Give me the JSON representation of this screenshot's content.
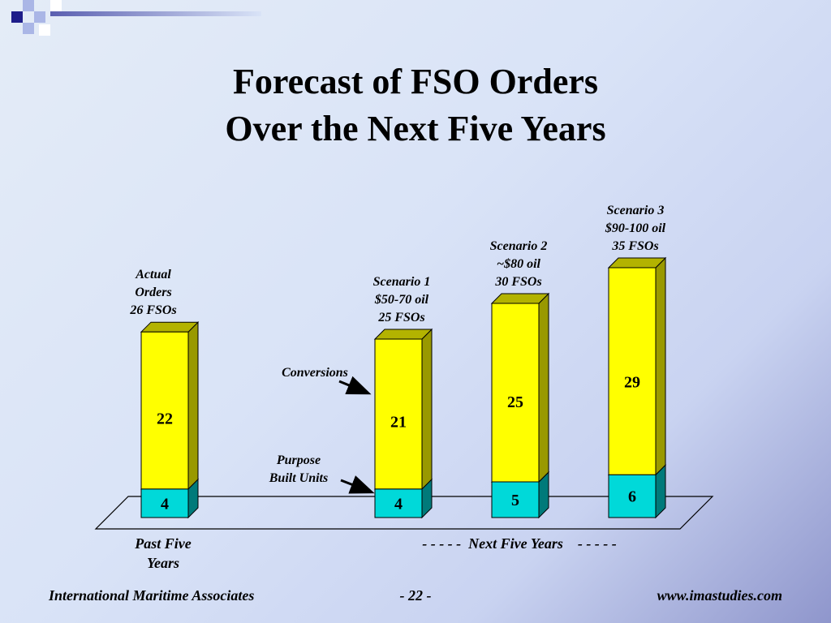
{
  "title": {
    "line1": "Forecast of FSO Orders",
    "line2": "Over the Next Five Years"
  },
  "chart_data": {
    "type": "bar",
    "stacked": true,
    "categories": [
      "Actual Orders",
      "Scenario 1",
      "Scenario 2",
      "Scenario 3"
    ],
    "series": [
      {
        "name": "Purpose Built Units",
        "values": [
          4,
          4,
          5,
          6
        ],
        "color": "#00d9d9"
      },
      {
        "name": "Conversions",
        "values": [
          22,
          21,
          25,
          29
        ],
        "color": "#ffff00"
      }
    ],
    "bar_labels": [
      [
        "Actual",
        "Orders",
        "26 FSOs"
      ],
      [
        "Scenario 1",
        "$50-70 oil",
        "25 FSOs"
      ],
      [
        "Scenario 2",
        "~$80 oil",
        "30 FSOs"
      ],
      [
        "Scenario 3",
        "$90-100 oil",
        "35 FSOs"
      ]
    ],
    "annotations": {
      "conversions": "Conversions",
      "purpose_built": [
        "Purpose",
        "Built Units"
      ]
    },
    "x_groups": {
      "past": [
        "Past Five",
        "Years"
      ],
      "next": "- - - - -  Next Five Years    - - - - -"
    }
  },
  "footer": {
    "left": "International Maritime Associates",
    "center": "- 22 -",
    "right": "www.imastudies.com"
  },
  "colors": {
    "conversions_front": "#ffff00",
    "conversions_side": "#999900",
    "conversions_top": "#b3b300",
    "purpose_front": "#00d9d9",
    "purpose_side": "#007a7a",
    "purpose_top": "#00a8a8",
    "deco_navy": "#1e1e8a"
  }
}
